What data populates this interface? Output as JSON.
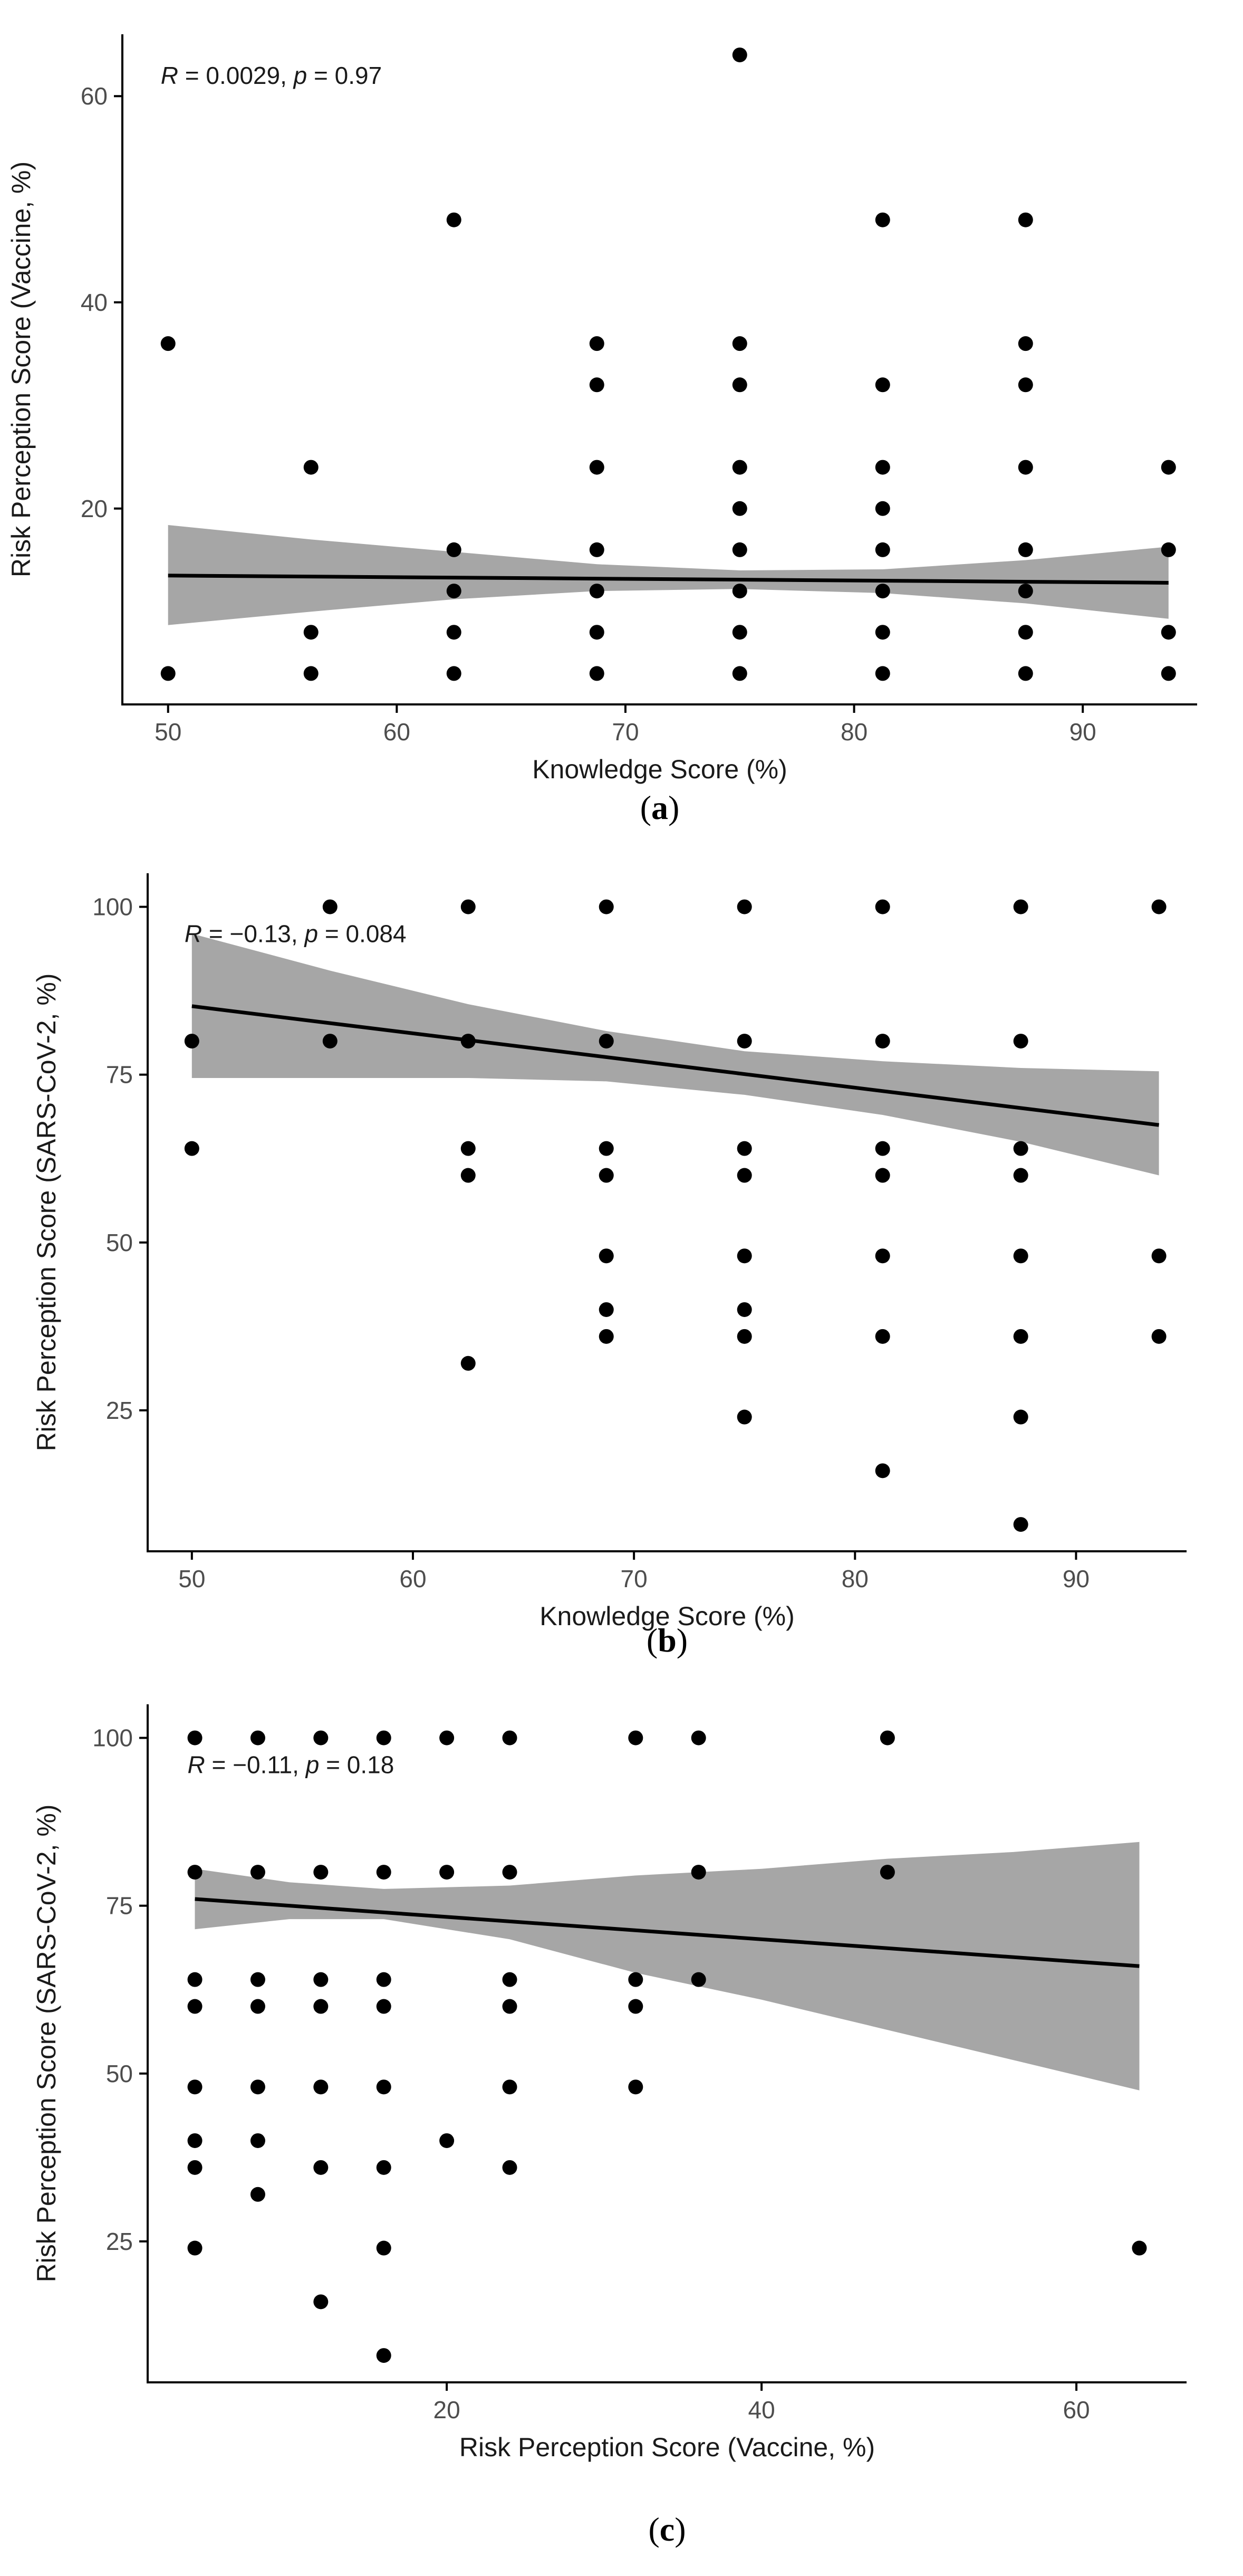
{
  "colors": {
    "point": "#000000",
    "band": "#a6a6a6",
    "line": "#000000",
    "axis": "#000000",
    "tick_text": "#4d4d4d"
  },
  "chart_data": [
    {
      "type": "scatter",
      "panel": "(a)",
      "panel_letter": "a",
      "xlabel": "Knowledge Score (%)",
      "ylabel": "Risk Perception Score (Vaccine, %)",
      "xlim": [
        48,
        95
      ],
      "ylim": [
        1,
        66
      ],
      "xticks": [
        50,
        60,
        70,
        80,
        90
      ],
      "yticks": [
        20,
        40,
        60
      ],
      "annotation": {
        "r_symbol": "R",
        "r_text": " = 0.0029, ",
        "p_symbol": "p",
        "p_text": " = 0.97",
        "x": 50,
        "y": 62
      },
      "points": [
        [
          50,
          36
        ],
        [
          50,
          4
        ],
        [
          56.25,
          24
        ],
        [
          56.25,
          8
        ],
        [
          56.25,
          4
        ],
        [
          62.5,
          48
        ],
        [
          62.5,
          16
        ],
        [
          62.5,
          12
        ],
        [
          62.5,
          8
        ],
        [
          62.5,
          4
        ],
        [
          68.75,
          36
        ],
        [
          68.75,
          32
        ],
        [
          68.75,
          24
        ],
        [
          68.75,
          16
        ],
        [
          68.75,
          12
        ],
        [
          68.75,
          8
        ],
        [
          68.75,
          4
        ],
        [
          75,
          64
        ],
        [
          75,
          36
        ],
        [
          75,
          32
        ],
        [
          75,
          24
        ],
        [
          75,
          20
        ],
        [
          75,
          16
        ],
        [
          75,
          12
        ],
        [
          75,
          8
        ],
        [
          75,
          4
        ],
        [
          81.25,
          48
        ],
        [
          81.25,
          32
        ],
        [
          81.25,
          24
        ],
        [
          81.25,
          20
        ],
        [
          81.25,
          16
        ],
        [
          81.25,
          12
        ],
        [
          81.25,
          8
        ],
        [
          81.25,
          4
        ],
        [
          87.5,
          48
        ],
        [
          87.5,
          36
        ],
        [
          87.5,
          32
        ],
        [
          87.5,
          24
        ],
        [
          87.5,
          16
        ],
        [
          87.5,
          12
        ],
        [
          87.5,
          8
        ],
        [
          87.5,
          4
        ],
        [
          93.75,
          24
        ],
        [
          93.75,
          16
        ],
        [
          93.75,
          8
        ],
        [
          93.75,
          4
        ]
      ],
      "fit_line": [
        [
          50,
          13.5
        ],
        [
          93.75,
          12.8
        ]
      ],
      "band": {
        "x": [
          50,
          56.25,
          62.5,
          68.75,
          75,
          81.25,
          87.5,
          93.75
        ],
        "upper": [
          18.4,
          17.0,
          15.8,
          14.6,
          14.0,
          14.1,
          15.0,
          16.3
        ],
        "lower": [
          8.7,
          10.0,
          11.2,
          12.0,
          12.2,
          11.8,
          10.8,
          9.3
        ]
      }
    },
    {
      "type": "scatter",
      "panel": "(b)",
      "panel_letter": "b",
      "xlabel": "Knowledge Score (%)",
      "ylabel": "Risk Perception Score (SARS-CoV-2, %)",
      "xlim": [
        48,
        95
      ],
      "ylim": [
        4,
        105
      ],
      "xticks": [
        50,
        60,
        70,
        80,
        90
      ],
      "yticks": [
        25,
        50,
        75,
        100
      ],
      "annotation": {
        "r_symbol": "R",
        "r_text": " = −0.13, ",
        "p_symbol": "p",
        "p_text": " = 0.084",
        "x": 50,
        "y": 96
      },
      "points": [
        [
          50,
          80
        ],
        [
          50,
          64
        ],
        [
          56.25,
          100
        ],
        [
          56.25,
          80
        ],
        [
          62.5,
          100
        ],
        [
          62.5,
          80
        ],
        [
          62.5,
          64
        ],
        [
          62.5,
          60
        ],
        [
          62.5,
          32
        ],
        [
          68.75,
          100
        ],
        [
          68.75,
          80
        ],
        [
          68.75,
          64
        ],
        [
          68.75,
          60
        ],
        [
          68.75,
          48
        ],
        [
          68.75,
          40
        ],
        [
          68.75,
          36
        ],
        [
          75,
          100
        ],
        [
          75,
          80
        ],
        [
          75,
          64
        ],
        [
          75,
          60
        ],
        [
          75,
          48
        ],
        [
          75,
          40
        ],
        [
          75,
          36
        ],
        [
          75,
          24
        ],
        [
          81.25,
          100
        ],
        [
          81.25,
          80
        ],
        [
          81.25,
          64
        ],
        [
          81.25,
          60
        ],
        [
          81.25,
          48
        ],
        [
          81.25,
          36
        ],
        [
          81.25,
          16
        ],
        [
          87.5,
          100
        ],
        [
          87.5,
          80
        ],
        [
          87.5,
          64
        ],
        [
          87.5,
          60
        ],
        [
          87.5,
          48
        ],
        [
          87.5,
          36
        ],
        [
          87.5,
          24
        ],
        [
          87.5,
          8
        ],
        [
          93.75,
          100
        ],
        [
          93.75,
          48
        ],
        [
          93.75,
          36
        ]
      ],
      "fit_line": [
        [
          50,
          85.2
        ],
        [
          93.75,
          67.5
        ]
      ],
      "band": {
        "x": [
          50,
          56.25,
          62.5,
          68.75,
          75,
          81.25,
          87.5,
          93.75
        ],
        "upper": [
          96.0,
          90.5,
          85.5,
          81.5,
          78.5,
          77.0,
          76.0,
          75.5
        ],
        "lower": [
          74.5,
          74.5,
          74.5,
          74.0,
          72.0,
          69.0,
          65.0,
          60.0
        ]
      }
    },
    {
      "type": "scatter",
      "panel": "(c)",
      "panel_letter": "c",
      "xlabel": "Risk Perception Score (Vaccine, %)",
      "ylabel": "Risk Perception Score (SARS-CoV-2, %)",
      "xlim": [
        1,
        67
      ],
      "ylim": [
        4,
        105
      ],
      "xticks": [
        20,
        40,
        60
      ],
      "yticks": [
        25,
        50,
        75,
        100
      ],
      "annotation": {
        "r_symbol": "R",
        "r_text": " = −0.11, ",
        "p_symbol": "p",
        "p_text": " = 0.18",
        "x": 4,
        "y": 96
      },
      "points": [
        [
          4,
          100
        ],
        [
          4,
          80
        ],
        [
          4,
          64
        ],
        [
          4,
          60
        ],
        [
          4,
          48
        ],
        [
          4,
          40
        ],
        [
          4,
          36
        ],
        [
          4,
          24
        ],
        [
          8,
          100
        ],
        [
          8,
          80
        ],
        [
          8,
          64
        ],
        [
          8,
          60
        ],
        [
          8,
          48
        ],
        [
          8,
          40
        ],
        [
          8,
          32
        ],
        [
          12,
          100
        ],
        [
          12,
          80
        ],
        [
          12,
          64
        ],
        [
          12,
          60
        ],
        [
          12,
          48
        ],
        [
          12,
          36
        ],
        [
          12,
          16
        ],
        [
          16,
          100
        ],
        [
          16,
          80
        ],
        [
          16,
          64
        ],
        [
          16,
          60
        ],
        [
          16,
          48
        ],
        [
          16,
          36
        ],
        [
          16,
          24
        ],
        [
          16,
          8
        ],
        [
          20,
          100
        ],
        [
          20,
          80
        ],
        [
          20,
          40
        ],
        [
          24,
          100
        ],
        [
          24,
          80
        ],
        [
          24,
          64
        ],
        [
          24,
          60
        ],
        [
          24,
          48
        ],
        [
          24,
          36
        ],
        [
          32,
          100
        ],
        [
          32,
          64
        ],
        [
          32,
          60
        ],
        [
          32,
          48
        ],
        [
          36,
          100
        ],
        [
          36,
          80
        ],
        [
          36,
          64
        ],
        [
          48,
          100
        ],
        [
          48,
          80
        ],
        [
          64,
          24
        ]
      ],
      "fit_line": [
        [
          4,
          76.0
        ],
        [
          64,
          66.0
        ]
      ],
      "band": {
        "x": [
          4,
          10,
          16,
          24,
          32,
          40,
          48,
          56,
          64
        ],
        "upper": [
          80.5,
          78.5,
          77.5,
          78.0,
          79.5,
          80.5,
          82.0,
          83.0,
          84.5
        ],
        "lower": [
          71.5,
          73.0,
          73.0,
          70.0,
          65.0,
          61.0,
          56.5,
          52.0,
          47.5
        ]
      }
    }
  ]
}
